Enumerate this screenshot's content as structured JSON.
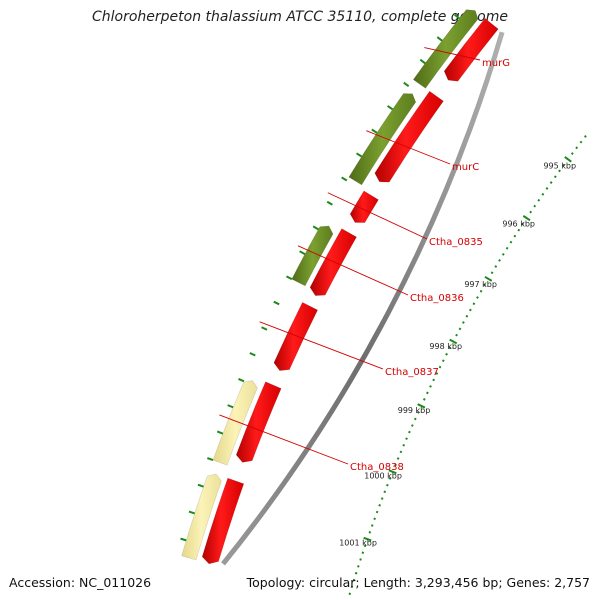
{
  "title": "Chloroherpeton thalassium ATCC 35110, complete genome",
  "footer": {
    "accession": "Accession: NC_011026",
    "summary": "Topology: circular; Length: 3,293,456 bp; Genes: 2,757"
  },
  "ticks": {
    "labeled": [
      "995 kbp",
      "996 kbp",
      "997 kbp",
      "998 kbp",
      "999 kbp",
      "1000 kbp",
      "1001 kbp"
    ],
    "first_kbp": 995,
    "last_kbp": 1001
  },
  "colors": {
    "reverse_strand": "#ff0000",
    "forward_strand_olive": "#6b8e23",
    "forward_strand_pale": "#f0e68c",
    "ticks": "#1a8a1a",
    "labels": "#d40000",
    "backbone": "#808080"
  },
  "genes": [
    {
      "name": "murG",
      "strand": "forward",
      "color": "olive"
    },
    {
      "name": "murC",
      "strand": "forward",
      "color": "olive"
    },
    {
      "name": "Ctha_0835",
      "strand": "reverse",
      "color": "red"
    },
    {
      "name": "Ctha_0836",
      "strand": "forward",
      "color": "olive"
    },
    {
      "name": "Ctha_0837",
      "strand": "reverse",
      "color": "red"
    },
    {
      "name": "Ctha_0838",
      "strand": "forward",
      "color": "pale"
    }
  ]
}
